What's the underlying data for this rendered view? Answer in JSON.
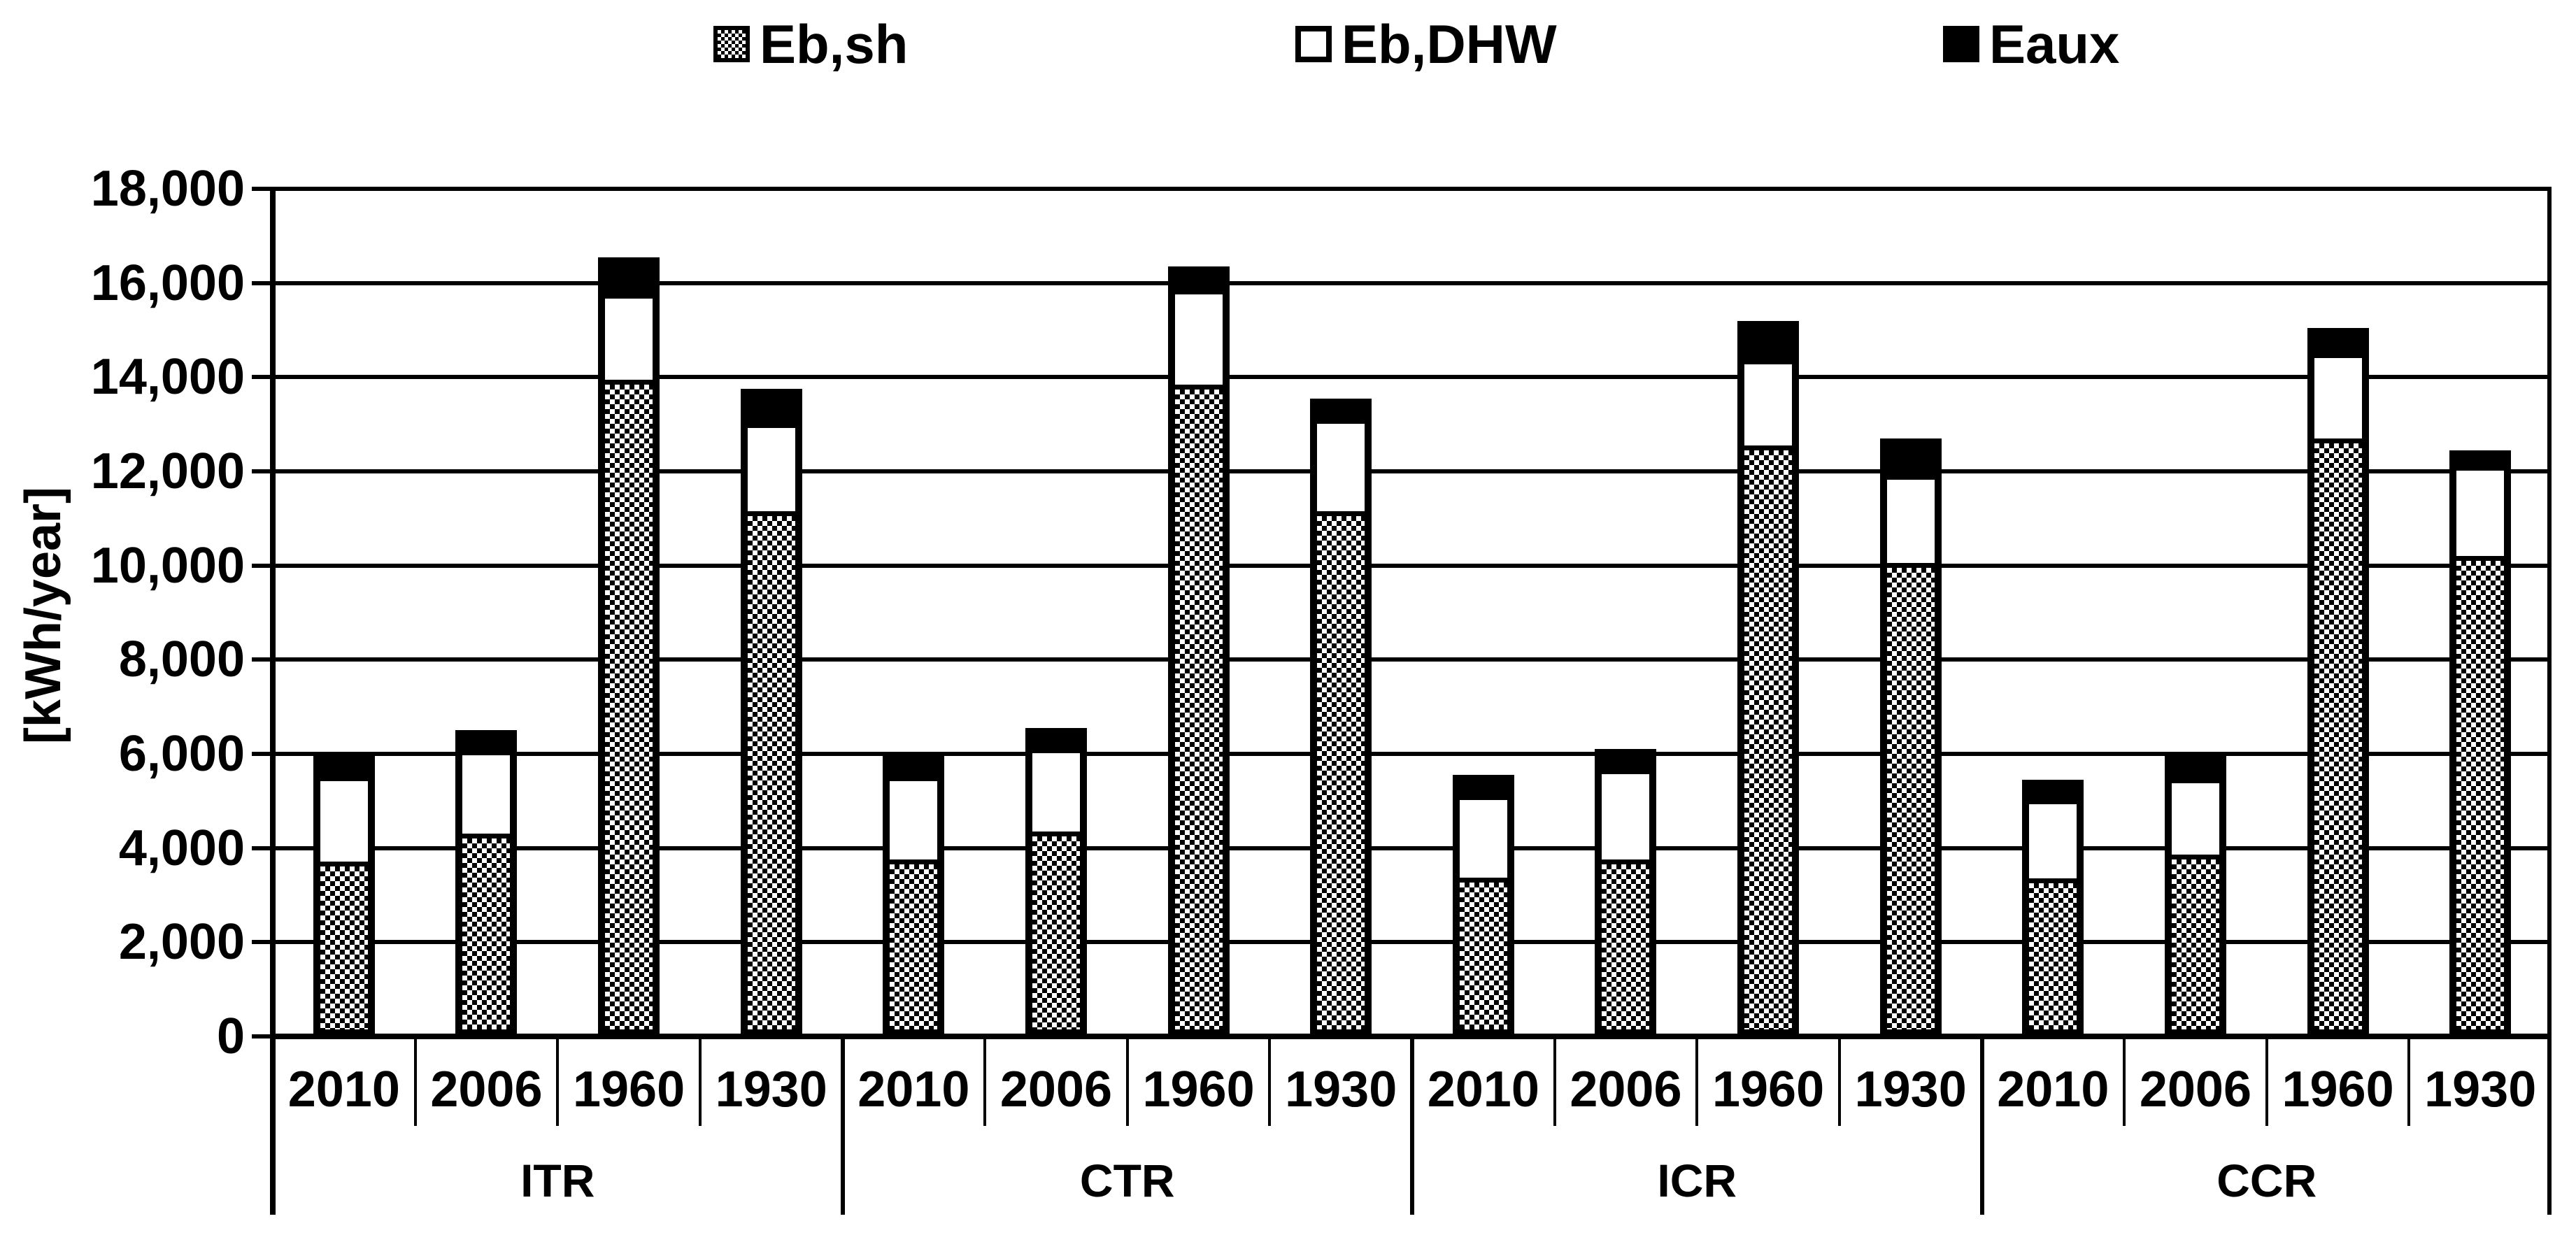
{
  "legend": {
    "items": [
      {
        "label": "Eb,sh",
        "swatch": "checker"
      },
      {
        "label": "Eb,DHW",
        "swatch": "white"
      },
      {
        "label": "Eaux",
        "swatch": "black"
      }
    ]
  },
  "y_axis": {
    "title": "[kWh/year]",
    "tick_labels": [
      "18,000",
      "16,000",
      "14,000",
      "12,000",
      "10,000",
      "8,000",
      "6,000",
      "4,000",
      "2,000",
      "0"
    ]
  },
  "x_axis": {
    "years": [
      "2010",
      "2006",
      "1960",
      "1930"
    ],
    "groups": [
      "ITR",
      "CTR",
      "ICR",
      "CCR"
    ]
  },
  "colors": {
    "foreground": "#000000",
    "background": "#ffffff"
  },
  "chart_data": {
    "type": "bar",
    "stacked": true,
    "title": "",
    "xlabel": "",
    "ylabel": "[kWh/year]",
    "ylim": [
      0,
      18000
    ],
    "grid_step": 2000,
    "grid": true,
    "legend_position": "top",
    "series_order": [
      "Eb,sh",
      "Eb,DHW",
      "Eaux"
    ],
    "years": [
      "2010",
      "2006",
      "1960",
      "1930"
    ],
    "groups": [
      {
        "label": "ITR",
        "values": {
          "Eb,sh": [
            3750,
            4350,
            14050,
            11250
          ],
          "Eb,DHW": [
            1800,
            1750,
            1750,
            1800
          ],
          "Eaux": [
            400,
            400,
            750,
            700
          ]
        },
        "totals": [
          5950,
          6500,
          16550,
          13750
        ]
      },
      {
        "label": "CTR",
        "values": {
          "Eb,sh": [
            3800,
            4400,
            13950,
            11250
          ],
          "Eb,DHW": [
            1750,
            1750,
            1950,
            1900
          ],
          "Eaux": [
            400,
            400,
            450,
            400
          ]
        },
        "totals": [
          5950,
          6550,
          16350,
          13550
        ]
      },
      {
        "label": "ICR",
        "values": {
          "Eb,sh": [
            3400,
            3800,
            12650,
            10150
          ],
          "Eb,DHW": [
            1750,
            1900,
            1750,
            1800
          ],
          "Eaux": [
            400,
            400,
            800,
            750
          ]
        },
        "totals": [
          5550,
          6100,
          15200,
          12700
        ]
      },
      {
        "label": "CCR",
        "values": {
          "Eb,sh": [
            3400,
            3900,
            12800,
            10300
          ],
          "Eb,DHW": [
            1650,
            1600,
            1750,
            1850
          ],
          "Eaux": [
            400,
            450,
            500,
            300
          ]
        },
        "totals": [
          5450,
          5950,
          15050,
          12450
        ]
      }
    ]
  }
}
